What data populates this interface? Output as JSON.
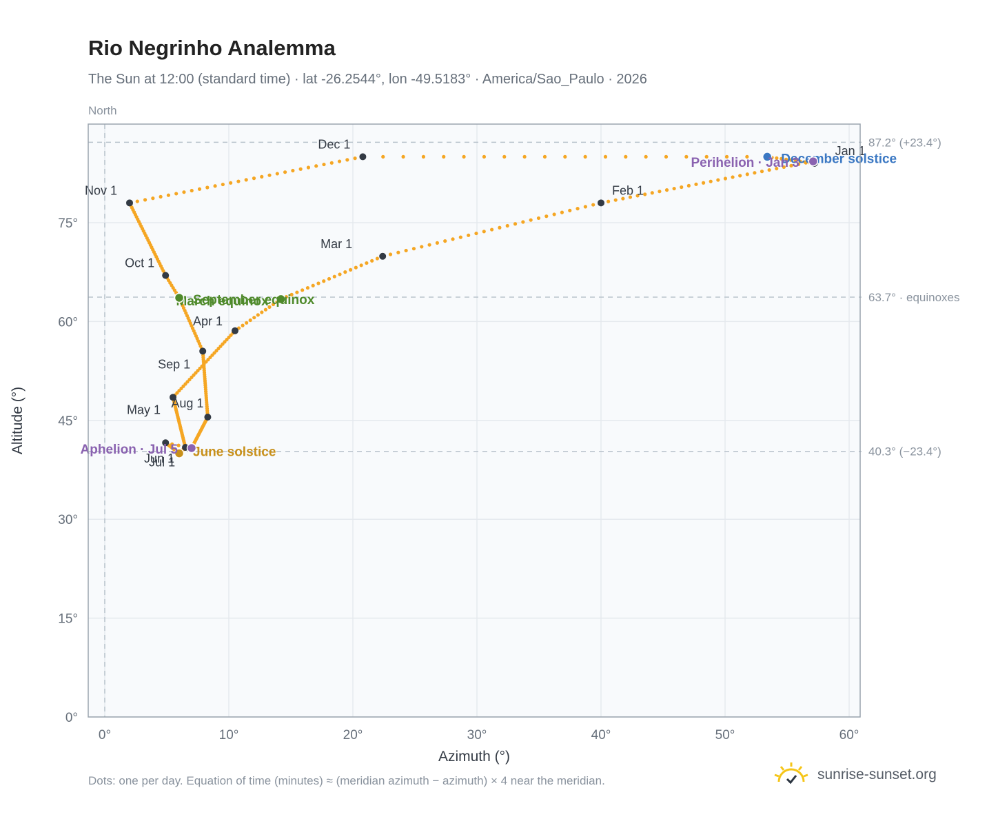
{
  "title": "Rio Negrinho Analemma",
  "subtitle": "The Sun at 12:00 (standard time) · lat -26.2544°, lon -49.5183° · America/Sao_Paulo · 2026",
  "north_label": "North",
  "footnote": "Dots: one per day. Equation of time (minutes) ≈ (meridian azimuth − azimuth) × 4 near the meridian.",
  "brand": {
    "text": "sunrise-sunset.org",
    "icon": "sun-logo-icon"
  },
  "colors": {
    "path": "#f5a623",
    "month_marker": "#333a44",
    "equinox": "#4f8a2b",
    "june_solstice": "#c8901a",
    "december_solstice": "#3b78c3",
    "apsis": "#8a62b0",
    "reference_line": "#b9c3cc",
    "grid": "#e5e9ee",
    "plot_bg": "#f8fafc"
  },
  "chart_data": {
    "type": "scatter",
    "xlabel": "Azimuth (°)",
    "ylabel": "Altitude (°)",
    "xlim": [
      -1.3,
      61
    ],
    "ylim": [
      0,
      90
    ],
    "xticks": [
      0,
      10,
      20,
      30,
      40,
      50,
      60
    ],
    "xtick_labels": [
      "0°",
      "10°",
      "20°",
      "30°",
      "40°",
      "50°",
      "60°"
    ],
    "yticks": [
      0,
      15,
      30,
      45,
      60,
      75
    ],
    "ytick_labels": [
      "0°",
      "15°",
      "30°",
      "45°",
      "60°",
      "75°"
    ],
    "grid": true,
    "meridian_azimuth": 0,
    "reference_lines": [
      {
        "altitude": 87.2,
        "label": "87.2° (+23.4°)"
      },
      {
        "altitude": 63.7,
        "label": "63.7° · equinoxes"
      },
      {
        "altitude": 40.3,
        "label": "40.3° (−23.4°)"
      }
    ],
    "path_waypoints": [
      {
        "doy": 1,
        "az": 57.2,
        "alt": 84.0
      },
      {
        "doy": 3,
        "az": 57.1,
        "alt": 84.3
      },
      {
        "doy": 32,
        "az": 40.0,
        "alt": 78.0
      },
      {
        "doy": 60,
        "az": 22.4,
        "alt": 69.9
      },
      {
        "doy": 79,
        "az": 14.2,
        "alt": 63.4
      },
      {
        "doy": 91,
        "az": 10.5,
        "alt": 58.6
      },
      {
        "doy": 121,
        "az": 5.5,
        "alt": 48.5
      },
      {
        "doy": 152,
        "az": 6.5,
        "alt": 40.9
      },
      {
        "doy": 172,
        "az": 6.0,
        "alt": 40.0
      },
      {
        "doy": 182,
        "az": 4.9,
        "alt": 41.6
      },
      {
        "doy": 186,
        "az": 7.0,
        "alt": 40.8
      },
      {
        "doy": 213,
        "az": 8.3,
        "alt": 45.5
      },
      {
        "doy": 244,
        "az": 7.9,
        "alt": 55.5
      },
      {
        "doy": 265,
        "az": 6.0,
        "alt": 63.6
      },
      {
        "doy": 274,
        "az": 4.9,
        "alt": 67.0
      },
      {
        "doy": 305,
        "az": 2.0,
        "alt": 78.0
      },
      {
        "doy": 335,
        "az": 20.8,
        "alt": 85.0
      },
      {
        "doy": 355,
        "az": 53.4,
        "alt": 85.0
      },
      {
        "doy": 365,
        "az": 57.2,
        "alt": 84.0
      }
    ],
    "month_markers": [
      {
        "label": "Jan 1",
        "az": 57.2,
        "alt": 84.0
      },
      {
        "label": "Feb 1",
        "az": 40.0,
        "alt": 78.0
      },
      {
        "label": "Mar 1",
        "az": 22.4,
        "alt": 69.9
      },
      {
        "label": "Apr 1",
        "az": 10.5,
        "alt": 58.6
      },
      {
        "label": "May 1",
        "az": 5.5,
        "alt": 48.5
      },
      {
        "label": "Jun 1",
        "az": 6.5,
        "alt": 40.9
      },
      {
        "label": "Jul 1",
        "az": 4.9,
        "alt": 41.6
      },
      {
        "label": "Aug 1",
        "az": 8.3,
        "alt": 45.5
      },
      {
        "label": "Sep 1",
        "az": 7.9,
        "alt": 55.5
      },
      {
        "label": "Oct 1",
        "az": 4.9,
        "alt": 67.0
      },
      {
        "label": "Nov 1",
        "az": 2.0,
        "alt": 78.0
      },
      {
        "label": "Dec 1",
        "az": 20.8,
        "alt": 85.0
      }
    ],
    "events": [
      {
        "label": "March equinox",
        "az": 14.2,
        "alt": 63.4,
        "color": "#4f8a2b"
      },
      {
        "label": "September equinox",
        "az": 6.0,
        "alt": 63.6,
        "color": "#4f8a2b"
      },
      {
        "label": "June solstice",
        "az": 6.0,
        "alt": 40.0,
        "color": "#c8901a"
      },
      {
        "label": "December solstice",
        "az": 53.4,
        "alt": 85.0,
        "color": "#3b78c3"
      },
      {
        "label": "Perihelion · Jan 3",
        "az": 57.1,
        "alt": 84.3,
        "color": "#8a62b0"
      },
      {
        "label": "Aphelion · Jul 5",
        "az": 7.0,
        "alt": 40.8,
        "color": "#8a62b0"
      }
    ]
  }
}
